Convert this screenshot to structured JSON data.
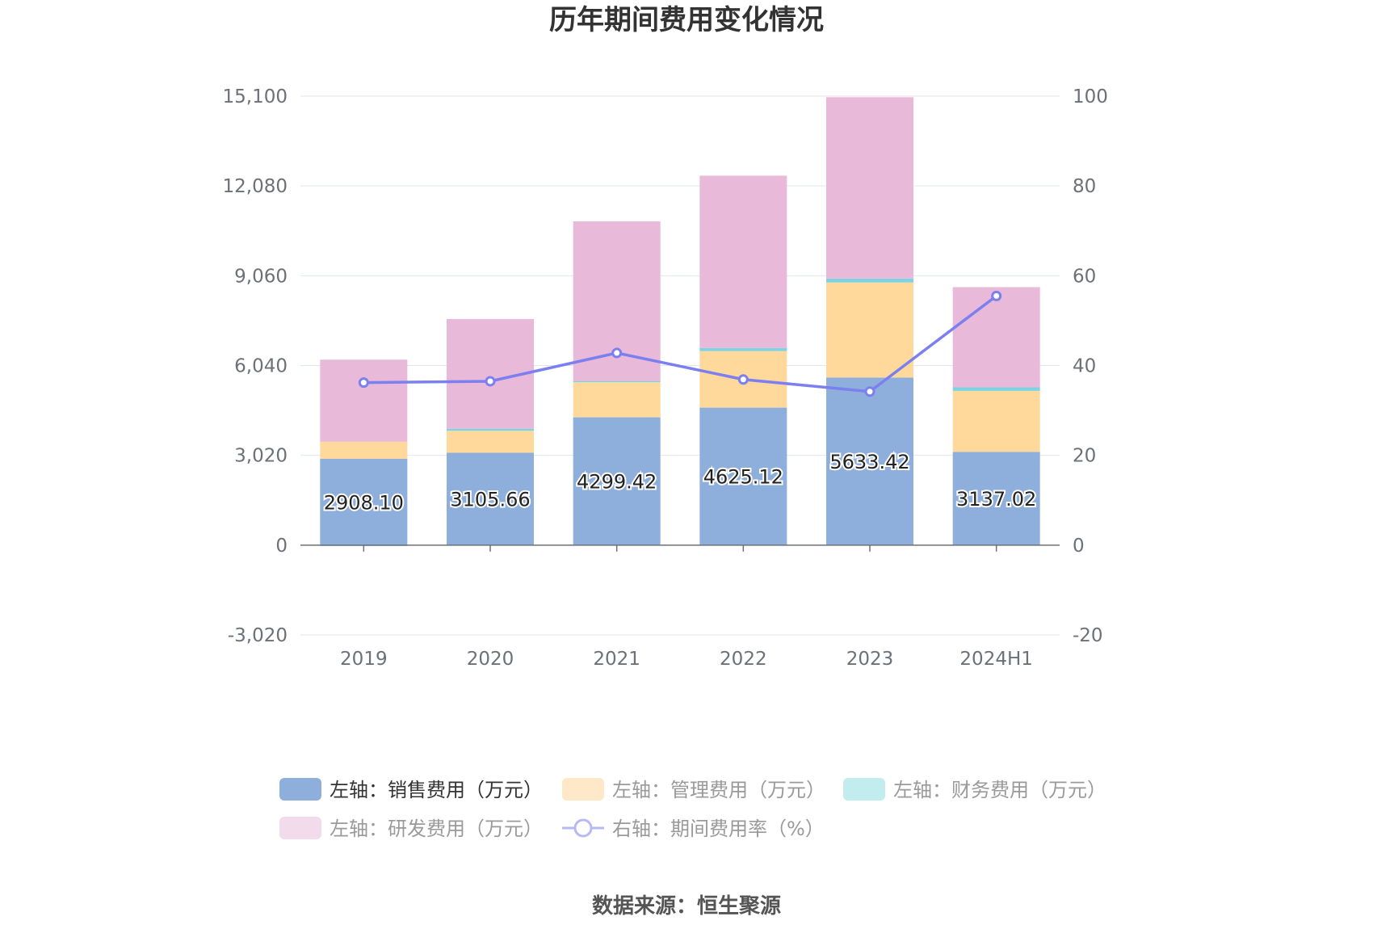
{
  "chart_data": {
    "type": "bar",
    "title": "历年期间费用变化情况",
    "source": "数据来源：恒生聚源",
    "categories": [
      "2019",
      "2020",
      "2021",
      "2022",
      "2023",
      "2024H1"
    ],
    "left_axis": {
      "ticks": [
        -3020,
        0,
        3020,
        6040,
        9060,
        12080,
        15100
      ],
      "tick_labels": [
        "-3,020",
        "0",
        "3,020",
        "6,040",
        "9,060",
        "12,080",
        "15,100"
      ],
      "ylim": [
        -3020,
        15100
      ]
    },
    "right_axis": {
      "ticks": [
        -20,
        0,
        20,
        40,
        60,
        80,
        100
      ],
      "tick_labels": [
        "-20",
        "0",
        "20",
        "40",
        "60",
        "80",
        "100"
      ],
      "ylim": [
        -20,
        100
      ]
    },
    "series": [
      {
        "name": "左轴：销售费用（万元）",
        "kind": "bar",
        "axis": "left",
        "color": "#8eaedb",
        "values": [
          2908.1,
          3105.66,
          4299.42,
          4625.12,
          5633.42,
          3137.02
        ],
        "labels": [
          "2908.10",
          "3105.66",
          "4299.42",
          "4625.12",
          "5633.42",
          "3137.02"
        ]
      },
      {
        "name": "左轴：管理费用（万元）",
        "kind": "bar",
        "axis": "left",
        "color": "#fed99b",
        "values": [
          570,
          740,
          1180,
          1900,
          3200,
          2050
        ]
      },
      {
        "name": "左轴：财务费用（万元）",
        "kind": "bar",
        "axis": "left",
        "color": "#7ed3e2",
        "values": [
          -30,
          70,
          40,
          100,
          130,
          120
        ]
      },
      {
        "name": "左轴：研发费用（万元）",
        "kind": "bar",
        "axis": "left",
        "color": "#e8b9d9",
        "values": [
          2760,
          3690,
          5370,
          5800,
          6100,
          3370
        ]
      },
      {
        "name": "右轴：期间费用率（%）",
        "kind": "line",
        "axis": "right",
        "color": "#7b7ff0",
        "values": [
          36.2,
          36.5,
          42.8,
          36.9,
          34.2,
          55.5
        ]
      }
    ],
    "legend_position": "bottom"
  },
  "legend_colors": {
    "sales": "#8eaedb",
    "admin": "#fee8c8",
    "finance": "#c2ecee",
    "rd": "#f2dcec",
    "rate": "#b7b9f6"
  }
}
